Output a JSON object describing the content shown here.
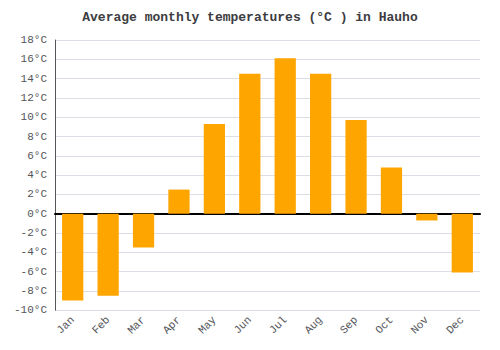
{
  "chart_data": {
    "type": "bar",
    "title": "Average monthly temperatures (°C ) in Hauho",
    "categories": [
      "Jan",
      "Feb",
      "Mar",
      "Apr",
      "May",
      "Jun",
      "Jul",
      "Aug",
      "Sep",
      "Oct",
      "Nov",
      "Dec"
    ],
    "values": [
      -9.0,
      -8.5,
      -3.5,
      2.5,
      9.3,
      14.5,
      16.1,
      14.5,
      9.7,
      4.8,
      -0.7,
      -6.1
    ],
    "color": "#FFA500",
    "ylim": [
      -10,
      18
    ],
    "yticks": [
      {
        "value": -10,
        "label": "-10°C"
      },
      {
        "value": -8,
        "label": "-8°C"
      },
      {
        "value": -6,
        "label": "-6°C"
      },
      {
        "value": -4,
        "label": "-4°C"
      },
      {
        "value": -2,
        "label": "-2°C"
      },
      {
        "value": 0,
        "label": "0°C"
      },
      {
        "value": 2,
        "label": "2°C"
      },
      {
        "value": 4,
        "label": "4°C"
      },
      {
        "value": 6,
        "label": "6°C"
      },
      {
        "value": 8,
        "label": "8°C"
      },
      {
        "value": 10,
        "label": "10°C"
      },
      {
        "value": 12,
        "label": "12°C"
      },
      {
        "value": 14,
        "label": "14°C"
      },
      {
        "value": 16,
        "label": "16°C"
      },
      {
        "value": 18,
        "label": "18°C"
      }
    ],
    "grid": true
  }
}
